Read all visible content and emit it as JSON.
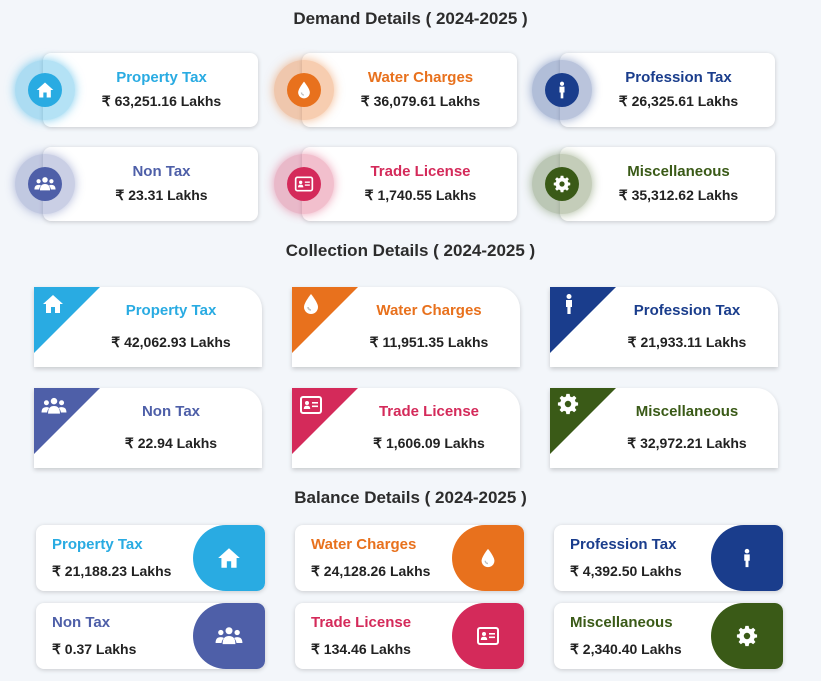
{
  "demand": {
    "title": "Demand Details ( 2024-2025 )",
    "items": [
      {
        "label": "Property Tax",
        "value": "₹ 63,251.16 Lakhs",
        "color": "#29abe2",
        "icon": "home-icon"
      },
      {
        "label": "Water Charges",
        "value": "₹ 36,079.61 Lakhs",
        "color": "#e8711d",
        "icon": "water-drop-icon"
      },
      {
        "label": "Profession Tax",
        "value": "₹ 26,325.61 Lakhs",
        "color": "#1a3d8c",
        "icon": "person-icon"
      },
      {
        "label": "Non Tax",
        "value": "₹ 23.31 Lakhs",
        "color": "#4e5fa8",
        "icon": "users-icon"
      },
      {
        "label": "Trade License",
        "value": "₹ 1,740.55 Lakhs",
        "color": "#d42a5a",
        "icon": "id-card-icon"
      },
      {
        "label": "Miscellaneous",
        "value": "₹ 35,312.62 Lakhs",
        "color": "#3a5a17",
        "icon": "gear-icon"
      }
    ]
  },
  "collection": {
    "title": "Collection Details ( 2024-2025 )",
    "items": [
      {
        "label": "Property Tax",
        "value": "₹ 42,062.93 Lakhs",
        "color": "#29abe2",
        "icon": "home-icon"
      },
      {
        "label": "Water Charges",
        "value": "₹ 11,951.35 Lakhs",
        "color": "#e8711d",
        "icon": "water-drop-icon"
      },
      {
        "label": "Profession Tax",
        "value": "₹ 21,933.11 Lakhs",
        "color": "#1a3d8c",
        "icon": "person-icon"
      },
      {
        "label": "Non Tax",
        "value": "₹ 22.94 Lakhs",
        "color": "#4e5fa8",
        "icon": "users-icon"
      },
      {
        "label": "Trade License",
        "value": "₹ 1,606.09 Lakhs",
        "color": "#d42a5a",
        "icon": "id-card-icon"
      },
      {
        "label": "Miscellaneous",
        "value": "₹ 32,972.21 Lakhs",
        "color": "#3a5a17",
        "icon": "gear-icon"
      }
    ]
  },
  "balance": {
    "title": "Balance Details ( 2024-2025 )",
    "items": [
      {
        "label": "Property Tax",
        "value": "₹ 21,188.23 Lakhs",
        "color": "#29abe2",
        "icon": "home-icon"
      },
      {
        "label": "Water Charges",
        "value": "₹ 24,128.26 Lakhs",
        "color": "#e8711d",
        "icon": "water-drop-icon"
      },
      {
        "label": "Profession Tax",
        "value": "₹ 4,392.50 Lakhs",
        "color": "#1a3d8c",
        "icon": "person-icon"
      },
      {
        "label": "Non Tax",
        "value": "₹ 0.37 Lakhs",
        "color": "#4e5fa8",
        "icon": "users-icon"
      },
      {
        "label": "Trade License",
        "value": "₹ 134.46 Lakhs",
        "color": "#d42a5a",
        "icon": "id-card-icon"
      },
      {
        "label": "Miscellaneous",
        "value": "₹ 2,340.40 Lakhs",
        "color": "#3a5a17",
        "icon": "gear-icon"
      }
    ]
  }
}
